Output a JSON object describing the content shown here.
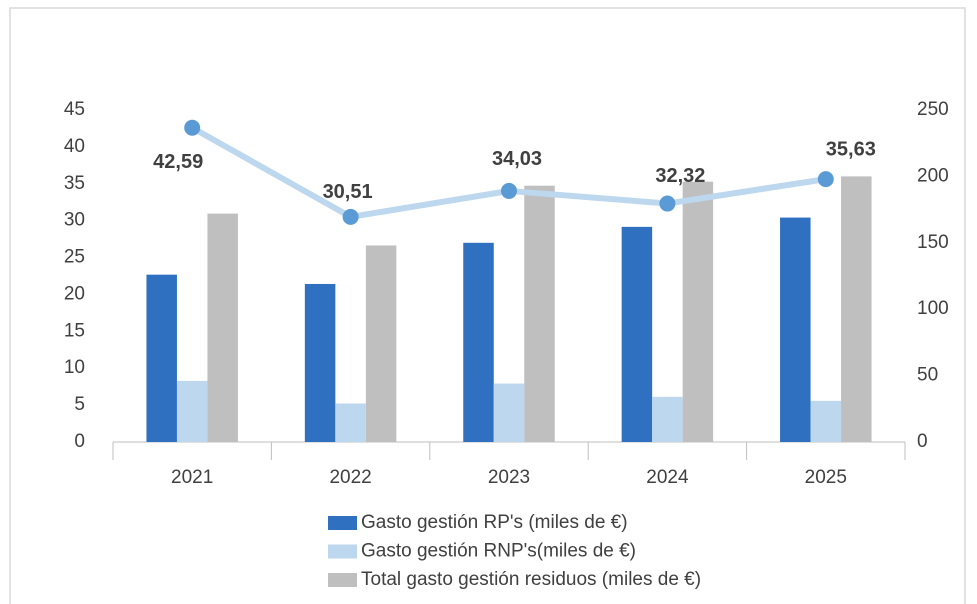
{
  "chart_data": {
    "type": "bar",
    "categories": [
      "2021",
      "2022",
      "2023",
      "2024",
      "2025"
    ],
    "series": [
      {
        "name": "Gasto gestión RP's (miles de €)",
        "color": "#3070c0",
        "axis": "y2",
        "values": [
          126,
          119,
          150,
          162,
          169
        ]
      },
      {
        "name": "Gasto gestión RNP's(miles de €)",
        "color": "#bdd7ee",
        "axis": "y2",
        "values": [
          46,
          29,
          44,
          34,
          31
        ]
      },
      {
        "name": "Total gasto gestión residuos (miles de €)",
        "color": "#bfbfbf",
        "axis": "y2",
        "values": [
          172,
          148,
          193,
          196,
          200
        ]
      },
      {
        "type": "line",
        "color": "#bdd7ee",
        "marker_color": "#5b9bd5",
        "axis": "y",
        "values": [
          42.59,
          30.51,
          34.03,
          32.32,
          35.63
        ],
        "value_labels": [
          "42,59",
          "30,51",
          "34,03",
          "32,32",
          "35,63"
        ]
      }
    ],
    "ylim": [
      0,
      45
    ],
    "yticks": [
      0,
      5,
      10,
      15,
      20,
      25,
      30,
      35,
      40,
      45
    ],
    "y2lim": [
      0,
      250
    ],
    "y2ticks": [
      0,
      50,
      100,
      150,
      200,
      250
    ],
    "grid": false,
    "legend": "bottom"
  }
}
